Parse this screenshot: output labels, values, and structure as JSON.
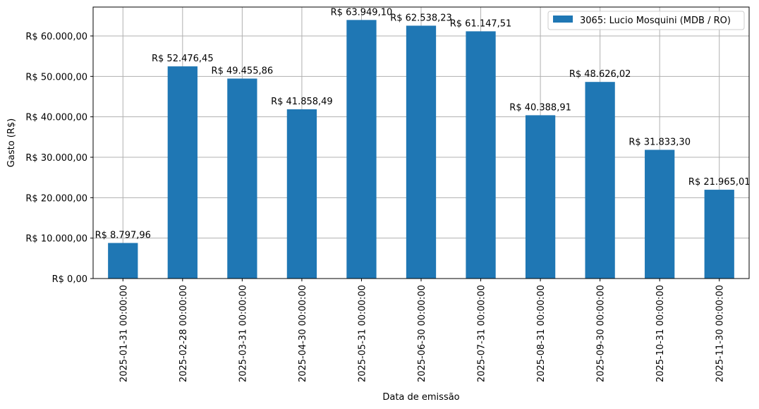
{
  "chart_data": {
    "type": "bar",
    "title": "",
    "xlabel": "Data de emissão",
    "ylabel": "Gasto (R$)",
    "categories": [
      "2025-01-31 00:00:00",
      "2025-02-28 00:00:00",
      "2025-03-31 00:00:00",
      "2025-04-30 00:00:00",
      "2025-05-31 00:00:00",
      "2025-06-30 00:00:00",
      "2025-07-31 00:00:00",
      "2025-08-31 00:00:00",
      "2025-09-30 00:00:00",
      "2025-10-31 00:00:00",
      "2025-11-30 00:00:00"
    ],
    "series": [
      {
        "name": "3065: Lucio Mosquini (MDB / RO)",
        "color": "#1f77b4",
        "values": [
          8797.96,
          52476.45,
          49455.86,
          41858.49,
          63949.1,
          62538.23,
          61147.51,
          40388.91,
          48626.02,
          31833.3,
          21965.01
        ],
        "data_labels": [
          "R$ 8.797,96",
          "R$ 52.476,45",
          "R$ 49.455,86",
          "R$ 41.858,49",
          "R$ 63.949,10",
          "R$ 62.538,23",
          "R$ 61.147,51",
          "R$ 40.388,91",
          "R$ 48.626,02",
          "R$ 31.833,30",
          "R$ 21.965,01"
        ]
      }
    ],
    "ylim": [
      0,
      67147.56
    ],
    "yticks": [
      0,
      10000,
      20000,
      30000,
      40000,
      50000,
      60000
    ],
    "ytick_labels": [
      "R$ 0,00",
      "R$ 10.000,00",
      "R$ 20.000,00",
      "R$ 30.000,00",
      "R$ 40.000,00",
      "R$ 50.000,00",
      "R$ 60.000,00"
    ],
    "grid": true,
    "legend_position": "top-right"
  }
}
